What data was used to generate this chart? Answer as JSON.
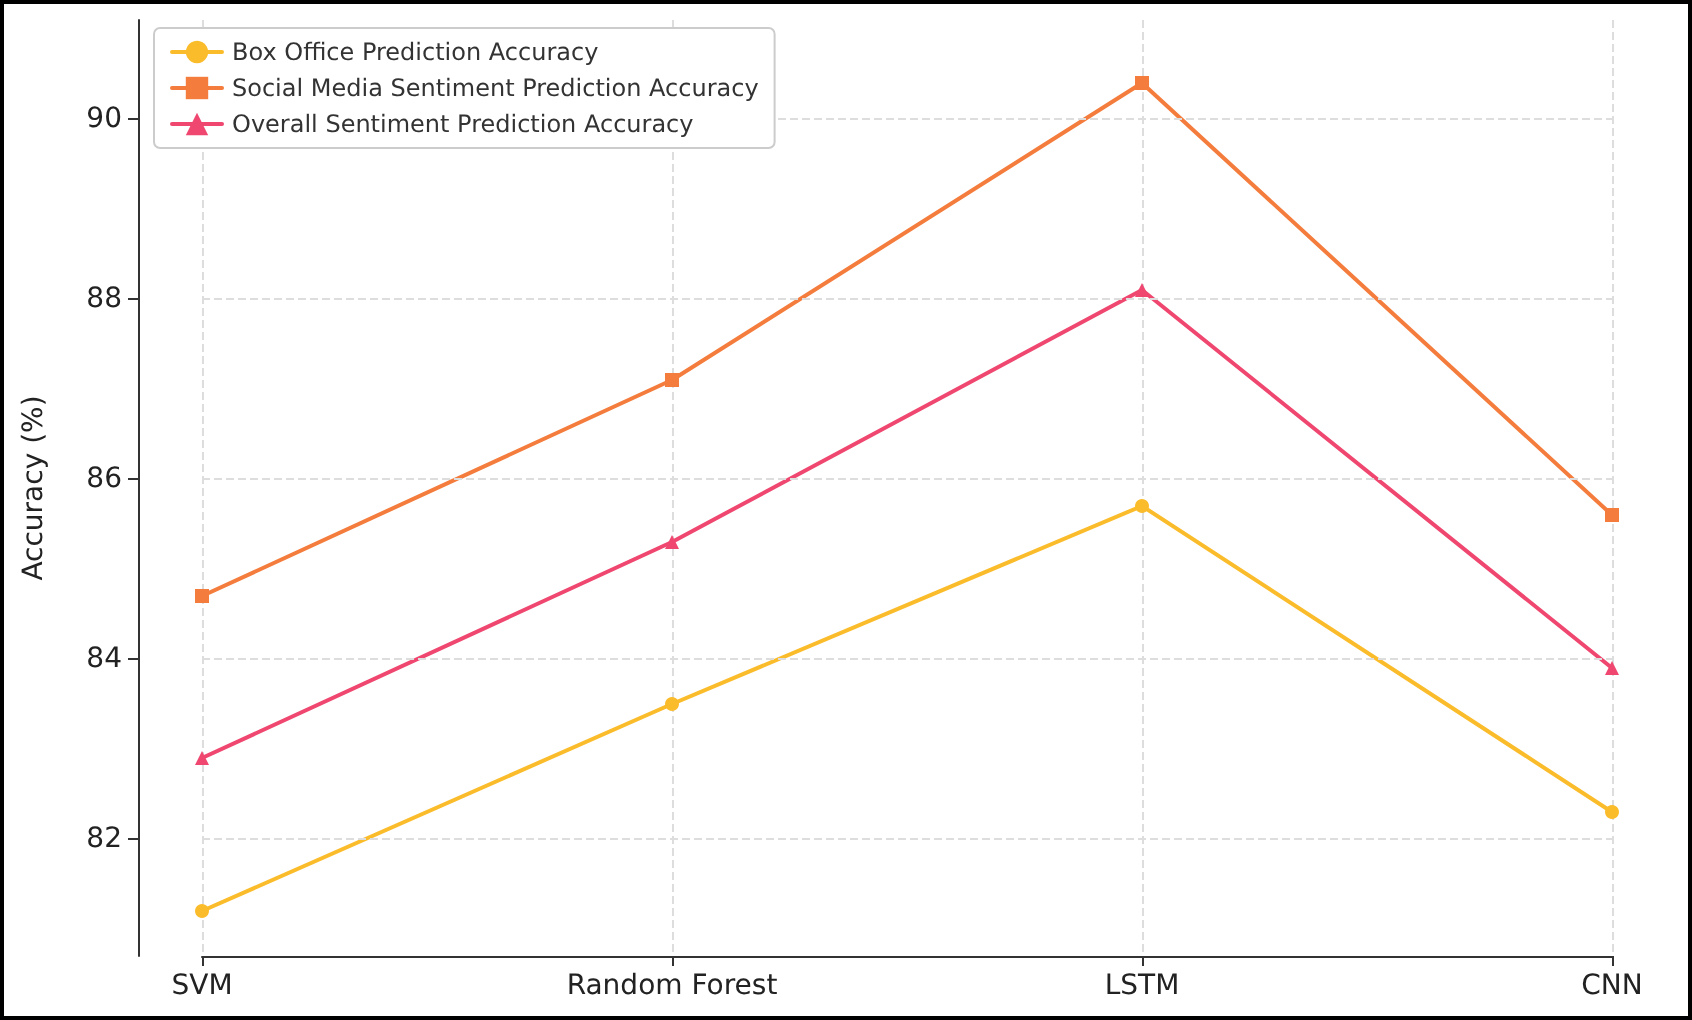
{
  "chart_data": {
    "type": "line",
    "ylabel": "Accuracy (%)",
    "categories": [
      "SVM",
      "Random Forest",
      "LSTM",
      "CNN"
    ],
    "series": [
      {
        "name": "Box Office Prediction Accuracy",
        "color": "#fbbc2c",
        "marker": "circle",
        "values": [
          81.2,
          83.5,
          85.7,
          82.3
        ]
      },
      {
        "name": "Social Media Sentiment Prediction Accuracy",
        "color": "#f47c3c",
        "marker": "square",
        "values": [
          84.7,
          87.1,
          90.4,
          85.6
        ]
      },
      {
        "name": "Overall Sentiment Prediction Accuracy",
        "color": "#ef476f",
        "marker": "triangle",
        "values": [
          82.9,
          85.3,
          88.1,
          83.9
        ]
      }
    ],
    "ylim": [
      80.7,
      91.1
    ],
    "yticks": [
      82,
      84,
      86,
      88,
      90
    ],
    "grid": true,
    "legend": "top left",
    "line_style": "solid"
  }
}
